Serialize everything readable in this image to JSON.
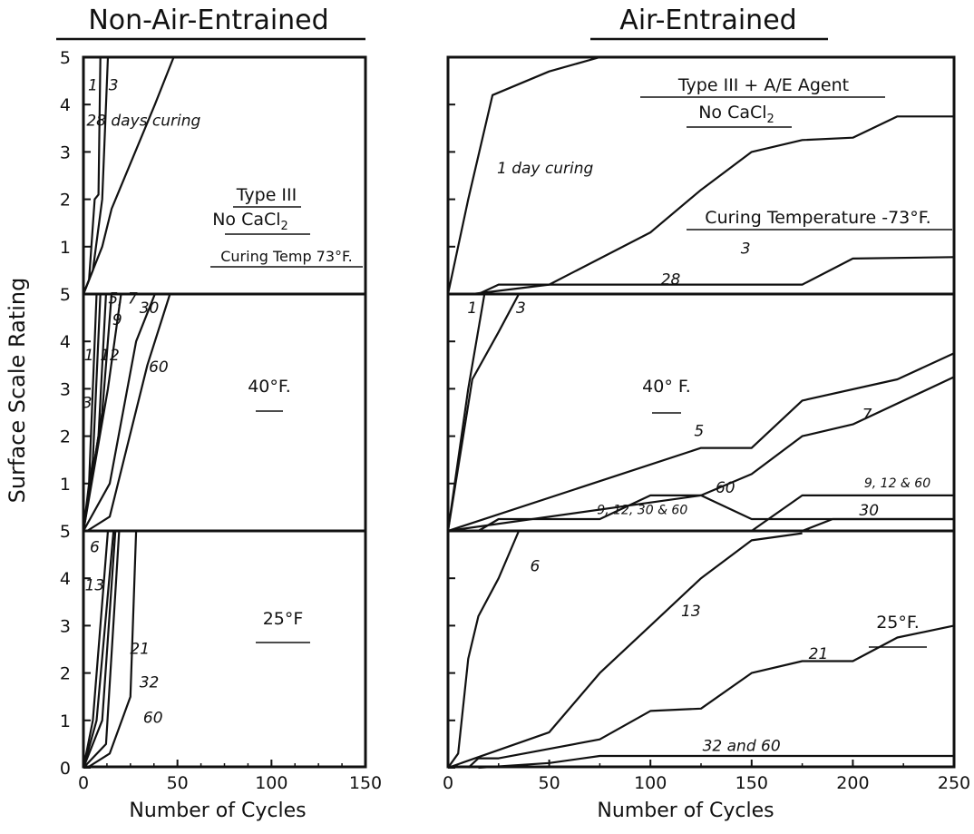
{
  "titles": {
    "left": "Non-Air-Entrained",
    "right": "Air-Entrained"
  },
  "y_axis_label": "Surface Scale Rating",
  "left_xlabel": "Number of Cycles",
  "right_xlabel": "Number of Cycles",
  "left_notes": {
    "type": "Type III",
    "cacl": "No CaCl",
    "cacl_sub": "2",
    "temp": "Curing Temp 73°F."
  },
  "right_notes": {
    "type": "Type III + A/E Agent",
    "cacl": "No CaCl",
    "cacl_sub": "2",
    "temp": "Curing Temperature -73°F."
  },
  "chart_data": [
    {
      "type": "line",
      "title": "Non-Air-Entrained",
      "xlabel": "Number of Cycles",
      "ylabel": "Surface Scale Rating",
      "xlim": [
        0,
        150
      ],
      "xticks": [
        0,
        50,
        100,
        150
      ],
      "yticks": [
        0,
        1,
        2,
        3,
        4,
        5
      ],
      "ylim": [
        0,
        5
      ],
      "panels": [
        {
          "label": "",
          "series": [
            {
              "name": "1",
              "points": [
                [
                  0,
                  0
                ],
                [
                  3,
                  0.3
                ],
                [
                  6,
                  2.0
                ],
                [
                  8,
                  2.1
                ],
                [
                  9,
                  5.0
                ]
              ]
            },
            {
              "name": "3",
              "points": [
                [
                  0,
                  0
                ],
                [
                  5,
                  0.5
                ],
                [
                  10,
                  2.0
                ],
                [
                  13,
                  5.0
                ]
              ]
            },
            {
              "name": "28 days curing",
              "points": [
                [
                  0,
                  0
                ],
                [
                  10,
                  1.0
                ],
                [
                  15,
                  1.8
                ],
                [
                  38,
                  4.0
                ],
                [
                  48,
                  5.0
                ]
              ]
            }
          ],
          "labels": [
            {
              "text": "1",
              "x": 5,
              "y": 4.3
            },
            {
              "text": "3",
              "x": 16,
              "y": 4.3
            },
            {
              "text": "28 days curing",
              "x": 32,
              "y": 3.55
            }
          ]
        },
        {
          "label": "40°F.",
          "series": [
            {
              "name": "3",
              "points": [
                [
                  0,
                  0
                ],
                [
                  3,
                  1.0
                ],
                [
                  7,
                  5.0
                ]
              ]
            },
            {
              "name": "1",
              "points": [
                [
                  0,
                  0
                ],
                [
                  5,
                  1.5
                ],
                [
                  9,
                  5.0
                ]
              ]
            },
            {
              "name": "12",
              "points": [
                [
                  0,
                  0
                ],
                [
                  8,
                  2.0
                ],
                [
                  12,
                  5.0
                ]
              ]
            },
            {
              "name": "9",
              "points": [
                [
                  0,
                  0
                ],
                [
                  10,
                  2.5
                ],
                [
                  15,
                  5.0
                ]
              ]
            },
            {
              "name": "5, 7",
              "points": [
                [
                  0,
                  0
                ],
                [
                  13,
                  3.0
                ],
                [
                  20,
                  5.0
                ]
              ]
            },
            {
              "name": "30",
              "points": [
                [
                  0,
                  0
                ],
                [
                  14,
                  1.0
                ],
                [
                  28,
                  4.0
                ],
                [
                  38,
                  5.0
                ]
              ]
            },
            {
              "name": "60",
              "points": [
                [
                  2,
                  0
                ],
                [
                  14,
                  0.3
                ],
                [
                  34,
                  3.5
                ],
                [
                  46,
                  5.0
                ]
              ]
            }
          ],
          "labels": [
            {
              "text": "1",
              "x": 3,
              "y": 3.6
            },
            {
              "text": "3",
              "x": 2,
              "y": 2.6
            },
            {
              "text": "12",
              "x": 14,
              "y": 3.6
            },
            {
              "text": "9",
              "x": 18,
              "y": 4.35
            },
            {
              "text": "5, 7",
              "x": 21,
              "y": 4.8
            },
            {
              "text": "30",
              "x": 35,
              "y": 4.6
            },
            {
              "text": "60",
              "x": 40,
              "y": 3.35
            }
          ]
        },
        {
          "label": "25°F",
          "series": [
            {
              "name": "6",
              "points": [
                [
                  0,
                  0
                ],
                [
                  5,
                  1.0
                ],
                [
                  13,
                  5.0
                ]
              ]
            },
            {
              "name": "13",
              "points": [
                [
                  0,
                  0
                ],
                [
                  7,
                  1.0
                ],
                [
                  16,
                  5.0
                ]
              ]
            },
            {
              "name": "21",
              "points": [
                [
                  0,
                  0
                ],
                [
                  10,
                  1.0
                ],
                [
                  17,
                  5.0
                ]
              ]
            },
            {
              "name": "32",
              "points": [
                [
                  0,
                  0
                ],
                [
                  12,
                  0.5
                ],
                [
                  19,
                  5.0
                ]
              ]
            },
            {
              "name": "60",
              "points": [
                [
                  2,
                  0
                ],
                [
                  14,
                  0.3
                ],
                [
                  25,
                  1.5
                ],
                [
                  28,
                  5.0
                ]
              ]
            }
          ],
          "labels": [
            {
              "text": "6",
              "x": 6,
              "y": 4.55
            },
            {
              "text": "13",
              "x": 6,
              "y": 3.75
            },
            {
              "text": "21",
              "x": 30,
              "y": 2.4
            },
            {
              "text": "32",
              "x": 35,
              "y": 1.7
            },
            {
              "text": "60",
              "x": 37,
              "y": 0.95
            }
          ]
        }
      ]
    },
    {
      "type": "line",
      "title": "Air-Entrained",
      "xlabel": "Number of Cycles",
      "ylabel": "Surface Scale Rating",
      "xlim": [
        0,
        250
      ],
      "xticks": [
        0,
        50,
        100,
        150,
        200,
        250
      ],
      "yticks": [
        0,
        1,
        2,
        3,
        4,
        5
      ],
      "ylim": [
        0,
        5
      ],
      "panels": [
        {
          "label": "",
          "series": [
            {
              "name": "1 day curing",
              "points": [
                [
                  0,
                  0
                ],
                [
                  10,
                  2.0
                ],
                [
                  22,
                  4.2
                ],
                [
                  50,
                  4.7
                ],
                [
                  75,
                  5.0
                ]
              ]
            },
            {
              "name": "3",
              "points": [
                [
                  12,
                  0
                ],
                [
                  50,
                  0.2
                ],
                [
                  100,
                  1.3
                ],
                [
                  125,
                  2.2
                ],
                [
                  150,
                  3.0
                ],
                [
                  175,
                  3.25
                ],
                [
                  200,
                  3.3
                ],
                [
                  222,
                  3.75
                ],
                [
                  250,
                  3.75
                ]
              ]
            },
            {
              "name": "28",
              "points": [
                [
                  15,
                  0
                ],
                [
                  25,
                  0.2
                ],
                [
                  175,
                  0.2
                ],
                [
                  200,
                  0.75
                ],
                [
                  250,
                  0.78
                ]
              ]
            }
          ],
          "labels": [
            {
              "text": "1 day curing",
              "x": 48,
              "y": 2.55
            },
            {
              "text": "3",
              "x": 147,
              "y": 0.85
            },
            {
              "text": "28",
              "x": 110,
              "y": 0.2
            }
          ]
        },
        {
          "label": "40° F.",
          "series": [
            {
              "name": "1",
              "points": [
                [
                  0,
                  0
                ],
                [
                  10,
                  3.0
                ],
                [
                  18,
                  5.0
                ]
              ]
            },
            {
              "name": "3",
              "points": [
                [
                  0,
                  0
                ],
                [
                  12,
                  3.2
                ],
                [
                  25,
                  4.2
                ],
                [
                  35,
                  5.0
                ]
              ]
            },
            {
              "name": "5",
              "points": [
                [
                  0,
                  0
                ],
                [
                  125,
                  1.75
                ],
                [
                  150,
                  1.75
                ],
                [
                  175,
                  2.75
                ],
                [
                  222,
                  3.2
                ],
                [
                  250,
                  3.75
                ]
              ]
            },
            {
              "name": "7",
              "points": [
                [
                  0,
                  0
                ],
                [
                  125,
                  0.75
                ],
                [
                  150,
                  1.2
                ],
                [
                  175,
                  2.0
                ],
                [
                  200,
                  2.25
                ],
                [
                  250,
                  3.25
                ]
              ]
            },
            {
              "name": "9, 12, 30 & 60",
              "points": [
                [
                  15,
                  0
                ],
                [
                  25,
                  0.25
                ],
                [
                  75,
                  0.25
                ],
                [
                  100,
                  0.75
                ],
                [
                  125,
                  0.75
                ],
                [
                  150,
                  0.25
                ],
                [
                  250,
                  0.25
                ]
              ]
            },
            {
              "name": "9, 12 & 60",
              "points": [
                [
                  150,
                  0
                ],
                [
                  175,
                  0.75
                ],
                [
                  250,
                  0.75
                ]
              ]
            },
            {
              "name": "30",
              "points": [
                [
                  175,
                  0
                ],
                [
                  190,
                  0.25
                ],
                [
                  250,
                  0.25
                ]
              ]
            }
          ],
          "labels": [
            {
              "text": "1",
              "x": 12,
              "y": 4.6
            },
            {
              "text": "3",
              "x": 36,
              "y": 4.6
            },
            {
              "text": "5",
              "x": 124,
              "y": 2.0
            },
            {
              "text": "7",
              "x": 207,
              "y": 2.35
            },
            {
              "text": "9, 12, 30 & 60",
              "x": 96,
              "y": 0.35
            },
            {
              "text": "60",
              "x": 137,
              "y": 0.8
            },
            {
              "text": "9, 12 & 60",
              "x": 222,
              "y": 0.92
            },
            {
              "text": "30",
              "x": 208,
              "y": 0.33
            }
          ]
        },
        {
          "label": "25°F.",
          "series": [
            {
              "name": "6",
              "points": [
                [
                  0,
                  0
                ],
                [
                  5,
                  0.3
                ],
                [
                  10,
                  2.3
                ],
                [
                  15,
                  3.2
                ],
                [
                  25,
                  4.0
                ],
                [
                  35,
                  5.0
                ]
              ]
            },
            {
              "name": "13",
              "points": [
                [
                  0,
                  0
                ],
                [
                  50,
                  0.75
                ],
                [
                  75,
                  2.0
                ],
                [
                  100,
                  3.0
                ],
                [
                  125,
                  4.0
                ],
                [
                  150,
                  4.8
                ],
                [
                  175,
                  4.95
                ]
              ]
            },
            {
              "name": "21",
              "points": [
                [
                  10,
                  0
                ],
                [
                  15,
                  0.2
                ],
                [
                  25,
                  0.2
                ],
                [
                  75,
                  0.6
                ],
                [
                  100,
                  1.2
                ],
                [
                  125,
                  1.25
                ],
                [
                  150,
                  2.0
                ],
                [
                  175,
                  2.25
                ],
                [
                  200,
                  2.25
                ],
                [
                  222,
                  2.75
                ],
                [
                  250,
                  3.0
                ]
              ]
            },
            {
              "name": "32 and 60",
              "points": [
                [
                  15,
                  0
                ],
                [
                  50,
                  0.1
                ],
                [
                  75,
                  0.25
                ],
                [
                  250,
                  0.25
                ]
              ]
            }
          ],
          "labels": [
            {
              "text": "6",
              "x": 43,
              "y": 4.15
            },
            {
              "text": "13",
              "x": 120,
              "y": 3.2
            },
            {
              "text": "21",
              "x": 183,
              "y": 2.3
            },
            {
              "text": "32 and 60",
              "x": 145,
              "y": 0.35
            }
          ]
        }
      ]
    }
  ]
}
